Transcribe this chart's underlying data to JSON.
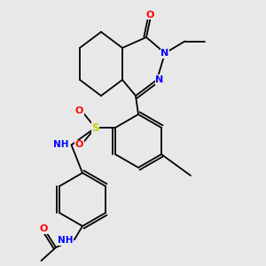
{
  "bg_color": "#e8e8e8",
  "bond_color": "#000000",
  "atom_colors": {
    "O": "#ff0000",
    "N": "#0000ff",
    "S": "#cccc00",
    "H": "#808080",
    "C": "#000000"
  },
  "font_size": 7.5,
  "bond_width": 1.3
}
